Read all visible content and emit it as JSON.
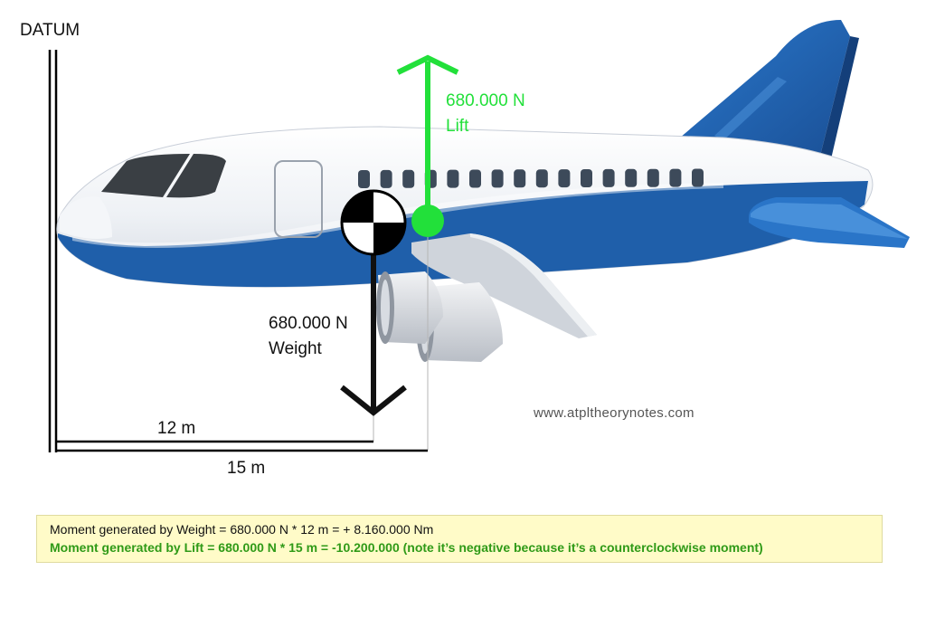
{
  "diagram": {
    "datum_label": "DATUM",
    "lift": {
      "value": "680.000 N",
      "name": "Lift"
    },
    "weight": {
      "value": "680.000 N",
      "name": "Weight"
    },
    "distances": {
      "weight_arm": "12 m",
      "lift_arm": "15 m"
    },
    "website": "www.atpltheorynotes.com",
    "colors": {
      "lift": "#22e03a",
      "weight": "#111111",
      "fuselage_blue": "#1f5faa",
      "moment_box_bg": "#fffbc8",
      "lift_text": "#2f9a17"
    }
  },
  "moment_box": {
    "weight_line": "Moment generated by Weight = 680.000 N * 12 m = + 8.160.000 Nm",
    "lift_line": "Moment generated by Lift = 680.000 N * 15 m = -10.200.000 (note it’s negative because it’s a counterclockwise moment)"
  }
}
